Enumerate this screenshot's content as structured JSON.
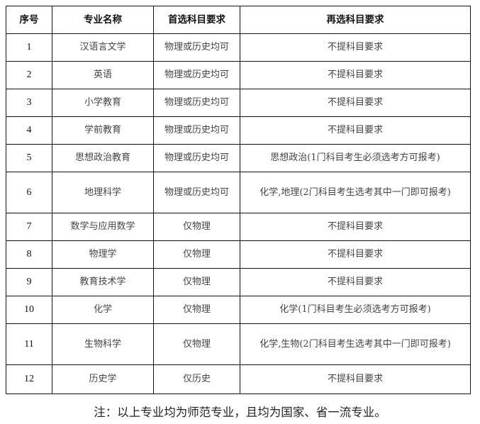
{
  "table": {
    "headers": [
      "序号",
      "专业名称",
      "首选科目要求",
      "再选科目要求"
    ],
    "rows": [
      [
        "1",
        "汉语言文学",
        "物理或历史均可",
        "不提科目要求"
      ],
      [
        "2",
        "英语",
        "物理或历史均可",
        "不提科目要求"
      ],
      [
        "3",
        "小学教育",
        "物理或历史均可",
        "不提科目要求"
      ],
      [
        "4",
        "学前教育",
        "物理或历史均可",
        "不提科目要求"
      ],
      [
        "5",
        "思想政治教育",
        "物理或历史均可",
        "思想政治(1门科目考生必须选考方可报考)"
      ],
      [
        "6",
        "地理科学",
        "物理或历史均可",
        "化学,地理(2门科目考生选考其中一门即可报考)"
      ],
      [
        "7",
        "数学与应用数学",
        "仅物理",
        "不提科目要求"
      ],
      [
        "8",
        "物理学",
        "仅物理",
        "不提科目要求"
      ],
      [
        "9",
        "教育技术学",
        "仅物理",
        "不提科目要求"
      ],
      [
        "10",
        "化学",
        "仅物理",
        "化学(1门科目考生必须选考方可报考)"
      ],
      [
        "11",
        "生物科学",
        "仅物理",
        "化学,生物(2门科目考生选考其中一门即可报考)"
      ],
      [
        "12",
        "历史学",
        "仅历史",
        "不提科目要求"
      ]
    ]
  },
  "note": "注：以上专业均为师范专业，且均为国家、省一流专业。"
}
